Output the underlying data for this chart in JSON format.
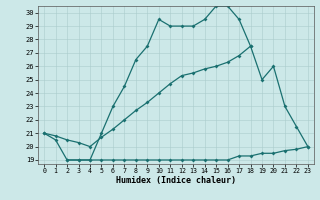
{
  "xlabel": "Humidex (Indice chaleur)",
  "bg_color": "#cce8e8",
  "grid_color": "#aacccc",
  "line_color": "#1a7070",
  "xlim_min": -0.5,
  "xlim_max": 23.5,
  "ylim_min": 18.7,
  "ylim_max": 30.5,
  "xticks": [
    0,
    1,
    2,
    3,
    4,
    5,
    6,
    7,
    8,
    9,
    10,
    11,
    12,
    13,
    14,
    15,
    16,
    17,
    18,
    19,
    20,
    21,
    22,
    23
  ],
  "yticks": [
    19,
    20,
    21,
    22,
    23,
    24,
    25,
    26,
    27,
    28,
    29,
    30
  ],
  "curve1_x": [
    0,
    1,
    2,
    3,
    4,
    5,
    6,
    7,
    8,
    9,
    10,
    11,
    12,
    13,
    14,
    15,
    16,
    17,
    18
  ],
  "curve1_y": [
    21.0,
    20.5,
    19.0,
    19.0,
    19.0,
    21.0,
    23.0,
    24.5,
    26.5,
    27.5,
    29.5,
    29.0,
    29.0,
    29.0,
    29.5,
    30.5,
    30.5,
    29.5,
    27.5
  ],
  "curve2_x": [
    0,
    1,
    2,
    3,
    4,
    5,
    6,
    7,
    8,
    9,
    10,
    11,
    12,
    13,
    14,
    15,
    16,
    17,
    18,
    19,
    20,
    21,
    22,
    23
  ],
  "curve2_y": [
    21.0,
    20.8,
    20.5,
    20.3,
    20.0,
    20.7,
    21.3,
    22.0,
    22.7,
    23.3,
    24.0,
    24.7,
    25.3,
    25.5,
    25.8,
    26.0,
    26.3,
    26.8,
    27.5,
    25.0,
    26.0,
    23.0,
    21.5,
    20.0
  ],
  "curve3_x": [
    2,
    3,
    4,
    5,
    6,
    7,
    8,
    9,
    10,
    11,
    12,
    13,
    14,
    15,
    16,
    17,
    18,
    19,
    20,
    21,
    22,
    23
  ],
  "curve3_y": [
    19.0,
    19.0,
    19.0,
    19.0,
    19.0,
    19.0,
    19.0,
    19.0,
    19.0,
    19.0,
    19.0,
    19.0,
    19.0,
    19.0,
    19.0,
    19.3,
    19.3,
    19.5,
    19.5,
    19.7,
    19.8,
    20.0
  ]
}
